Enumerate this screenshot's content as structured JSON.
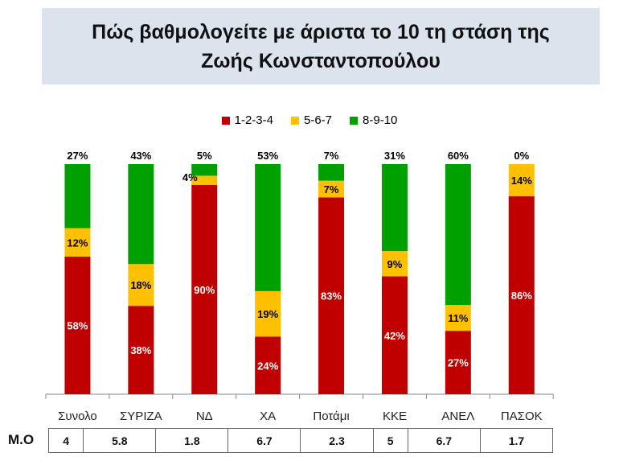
{
  "chart_data": {
    "type": "bar",
    "stacked": true,
    "title": "Πώς βαθμολογείτε με άριστα το 10 τη στάση της\nΖωής Κωνσταντοπούλου",
    "categories": [
      "Συνολο",
      "ΣΥΡΙΖΑ",
      "ΝΔ",
      "ΧΑ",
      "Ποτάμι",
      "ΚΚΕ",
      "ΑΝΕΛ",
      "ΠΑΣΟΚ"
    ],
    "series": [
      {
        "name": "1-2-3-4",
        "color": "#c00000",
        "values": [
          58,
          38,
          90,
          24,
          83,
          42,
          27,
          86
        ]
      },
      {
        "name": "5-6-7",
        "color": "#ffc000",
        "values": [
          12,
          18,
          4,
          19,
          7,
          9,
          11,
          14
        ]
      },
      {
        "name": "8-9-10",
        "color": "#00a000",
        "values": [
          27,
          43,
          5,
          53,
          7,
          31,
          60,
          0
        ]
      }
    ],
    "legend": "top",
    "ylabel": "",
    "xlabel": ""
  },
  "table": {
    "label": "Μ.Ο",
    "values": [
      "4",
      "5.8",
      "1.8",
      "6.7",
      "2.3",
      "5",
      "6.7",
      "1.7"
    ]
  }
}
